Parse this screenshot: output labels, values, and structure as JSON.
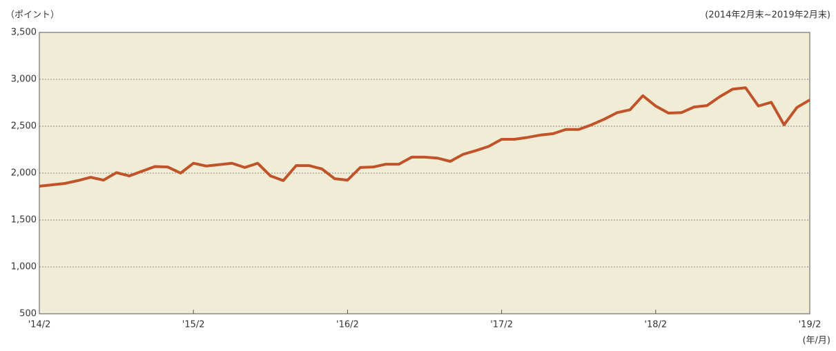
{
  "chart_data": {
    "type": "line",
    "y_unit": "（ポイント）",
    "subtitle": "(2014年2月末~2019年2月末)",
    "x_unit": "(年/月)",
    "categories": [
      "'14/2",
      null,
      null,
      null,
      null,
      null,
      null,
      null,
      null,
      null,
      null,
      null,
      "'15/2",
      null,
      null,
      null,
      null,
      null,
      null,
      null,
      null,
      null,
      null,
      null,
      "'16/2",
      null,
      null,
      null,
      null,
      null,
      null,
      null,
      null,
      null,
      null,
      null,
      "'17/2",
      null,
      null,
      null,
      null,
      null,
      null,
      null,
      null,
      null,
      null,
      null,
      "'18/2",
      null,
      null,
      null,
      null,
      null,
      null,
      null,
      null,
      null,
      null,
      null,
      "'19/2"
    ],
    "series": [
      {
        "color": "#c0532a",
        "values": [
          1860,
          1875,
          1890,
          1920,
          1955,
          1925,
          2005,
          1970,
          2020,
          2070,
          2065,
          2000,
          2105,
          2075,
          2090,
          2105,
          2060,
          2105,
          1970,
          1920,
          2080,
          2080,
          2045,
          1940,
          1925,
          2060,
          2065,
          2095,
          2095,
          2170,
          2170,
          2160,
          2125,
          2200,
          2240,
          2285,
          2360,
          2360,
          2380,
          2405,
          2420,
          2465,
          2465,
          2515,
          2575,
          2645,
          2675,
          2825,
          2715,
          2640,
          2645,
          2705,
          2720,
          2815,
          2895,
          2910,
          2715,
          2755,
          2515,
          2700,
          2780
        ]
      }
    ],
    "ylim": [
      500,
      3500
    ],
    "yticks": [
      500,
      {
        "value": 1000,
        "label": "1,000"
      },
      {
        "value": 1500,
        "label": "1,500"
      },
      {
        "value": 2000,
        "label": "2,000"
      },
      {
        "value": 2500,
        "label": "2,500"
      },
      {
        "value": 3000,
        "label": "3,000"
      },
      {
        "value": 3500,
        "label": "3,500"
      }
    ],
    "grid": true,
    "background": "#f1ecd5"
  }
}
